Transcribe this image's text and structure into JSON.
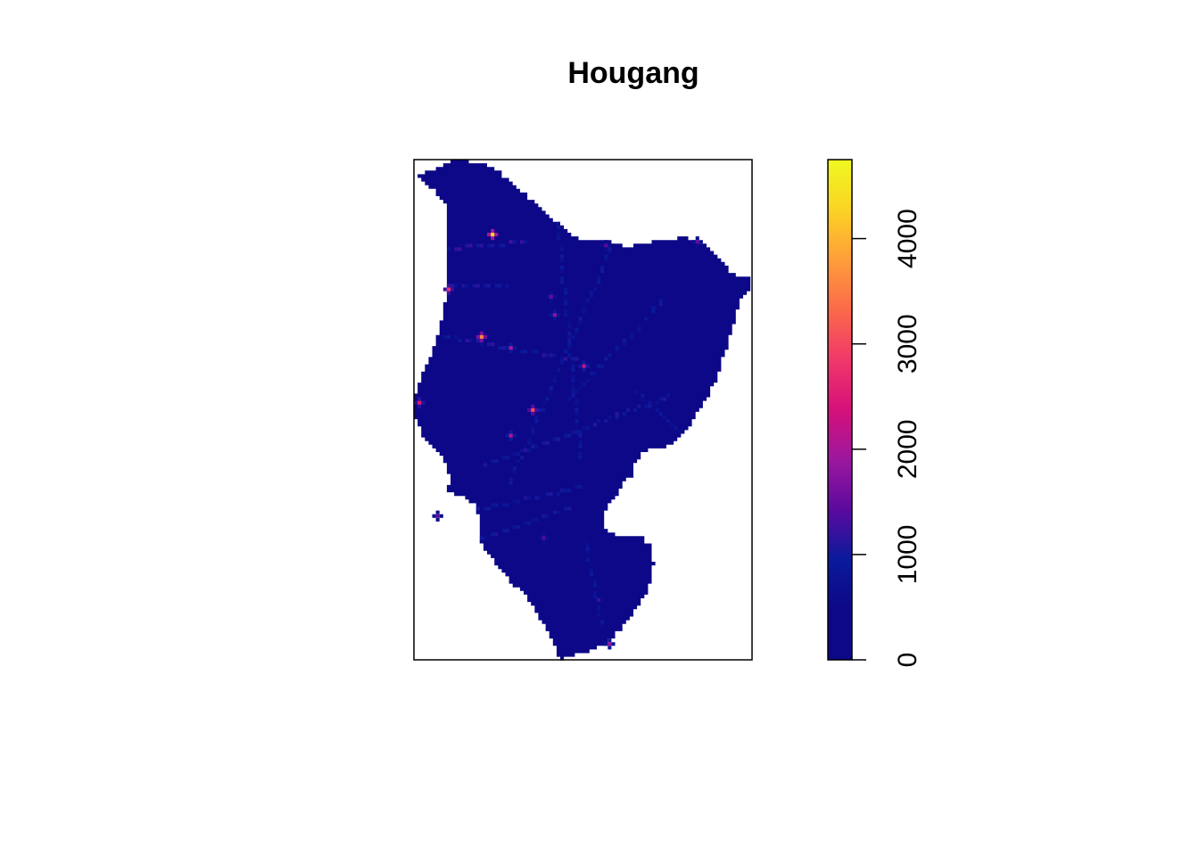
{
  "title": "Hougang",
  "legend": {
    "min": 0,
    "max": 4750,
    "ticks": [
      "0",
      "1000",
      "2000",
      "3000",
      "4000"
    ],
    "tick_values": [
      0,
      1000,
      2000,
      3000,
      4000
    ],
    "palette": [
      "#0D0887",
      "#0D0887",
      "#0A1A9C",
      "#5B0A9E",
      "#9C179E",
      "#D6117A",
      "#F0386A",
      "#FB6A4A",
      "#FE9E3A",
      "#FBD324",
      "#F0F921"
    ]
  },
  "chart_data": {
    "type": "heatmap",
    "title": "Hougang",
    "xlabel": "",
    "ylabel": "",
    "colorbar": {
      "range": [
        0,
        4750
      ],
      "ticks": [
        0,
        1000,
        2000,
        3000,
        4000
      ],
      "placement": "right"
    },
    "background_value": 0,
    "hotspots": [
      {
        "x": 0.23,
        "y": 0.145,
        "value": 4300
      },
      {
        "x": 0.19,
        "y": 0.35,
        "value": 3600
      },
      {
        "x": 0.1,
        "y": 0.255,
        "value": 2800
      },
      {
        "x": 0.35,
        "y": 0.5,
        "value": 3000
      },
      {
        "x": 0.5,
        "y": 0.41,
        "value": 2200
      },
      {
        "x": 0.28,
        "y": 0.37,
        "value": 2000
      },
      {
        "x": 0.01,
        "y": 0.485,
        "value": 2500
      },
      {
        "x": 0.28,
        "y": 0.55,
        "value": 2100
      },
      {
        "x": 0.41,
        "y": 0.31,
        "value": 1800
      },
      {
        "x": 0.56,
        "y": 0.17,
        "value": 1400
      },
      {
        "x": 0.83,
        "y": 0.16,
        "value": 1500
      },
      {
        "x": 0.4,
        "y": 0.27,
        "value": 1500
      },
      {
        "x": 0.54,
        "y": 0.88,
        "value": 1200
      },
      {
        "x": 0.38,
        "y": 0.755,
        "value": 1400
      },
      {
        "x": 0.07,
        "y": 0.71,
        "value": 1400
      },
      {
        "x": 0.57,
        "y": 0.962,
        "value": 1800
      }
    ],
    "streets": [
      {
        "from": [
          0.1,
          0.175
        ],
        "to": [
          0.33,
          0.16
        ],
        "value": 1100
      },
      {
        "from": [
          0.1,
          0.25
        ],
        "to": [
          0.27,
          0.25
        ],
        "value": 950
      },
      {
        "from": [
          0.09,
          0.35
        ],
        "to": [
          0.5,
          0.4
        ],
        "value": 1000
      },
      {
        "from": [
          0.21,
          0.605
        ],
        "to": [
          0.75,
          0.47
        ],
        "value": 950
      },
      {
        "from": [
          0.16,
          0.7
        ],
        "to": [
          0.5,
          0.65
        ],
        "value": 900
      },
      {
        "from": [
          0.17,
          0.76
        ],
        "to": [
          0.46,
          0.69
        ],
        "value": 900
      },
      {
        "from": [
          0.6,
          0.14
        ],
        "to": [
          0.28,
          0.64
        ],
        "value": 850
      },
      {
        "from": [
          0.42,
          0.12
        ],
        "to": [
          0.49,
          0.6
        ],
        "value": 850
      },
      {
        "from": [
          0.73,
          0.28
        ],
        "to": [
          0.45,
          0.48
        ],
        "value": 850
      },
      {
        "from": [
          0.65,
          0.46
        ],
        "to": [
          0.8,
          0.55
        ],
        "value": 850
      },
      {
        "from": [
          0.5,
          0.75
        ],
        "to": [
          0.55,
          0.93
        ],
        "value": 800
      }
    ]
  }
}
